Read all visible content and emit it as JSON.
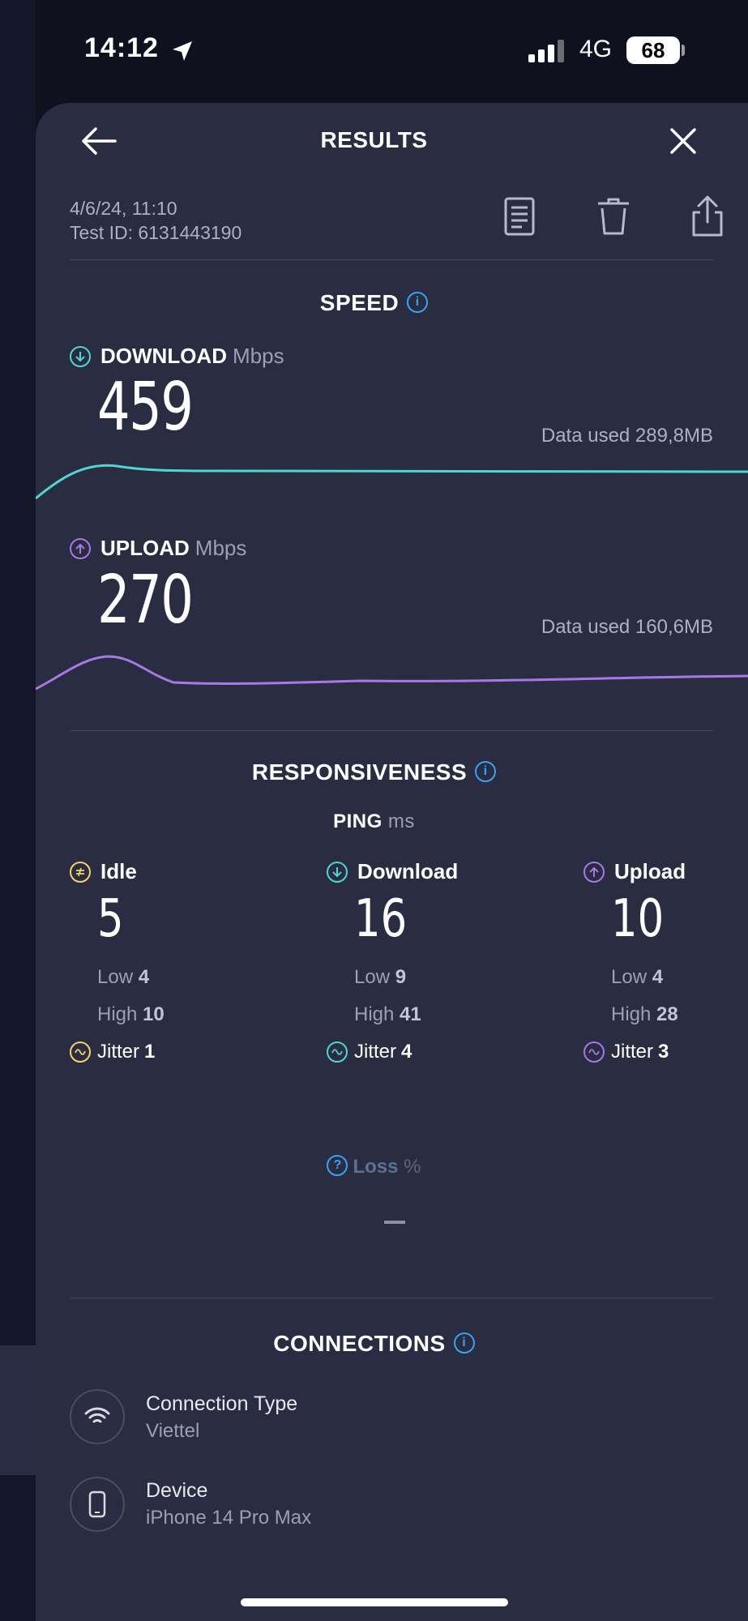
{
  "status_bar": {
    "time": "14:12",
    "network": "4G",
    "battery": "68"
  },
  "header": {
    "title": "RESULTS"
  },
  "meta": {
    "date": "4/6/24, 11:10",
    "test_id": "Test ID: 6131443190"
  },
  "speed": {
    "heading": "SPEED",
    "download": {
      "label": "DOWNLOAD",
      "unit": "Mbps",
      "value": "459",
      "data_used": "Data used 289,8MB",
      "color": "#4fd6d2"
    },
    "upload": {
      "label": "UPLOAD",
      "unit": "Mbps",
      "value": "270",
      "data_used": "Data used 160,6MB",
      "color": "#a978e6"
    }
  },
  "responsiveness": {
    "heading": "RESPONSIVENESS",
    "ping_label": "PING",
    "ping_unit": "ms",
    "columns": [
      {
        "name": "Idle",
        "value": "5",
        "low_label": "Low",
        "low": "4",
        "high_label": "High",
        "high": "10",
        "jitter_label": "Jitter",
        "jitter": "1",
        "color": "#f3d36a"
      },
      {
        "name": "Download",
        "value": "16",
        "low_label": "Low",
        "low": "9",
        "high_label": "High",
        "high": "41",
        "jitter_label": "Jitter",
        "jitter": "4",
        "color": "#4fd6d2"
      },
      {
        "name": "Upload",
        "value": "10",
        "low_label": "Low",
        "low": "4",
        "high_label": "High",
        "high": "28",
        "jitter_label": "Jitter",
        "jitter": "3",
        "color": "#a978e6"
      }
    ],
    "loss_label": "Loss",
    "loss_unit": "%"
  },
  "connections": {
    "heading": "CONNECTIONS",
    "items": [
      {
        "title": "Connection Type",
        "value": "Viettel",
        "icon": "wifi-icon"
      },
      {
        "title": "Device",
        "value": "iPhone 14 Pro Max",
        "icon": "phone-icon"
      }
    ]
  }
}
